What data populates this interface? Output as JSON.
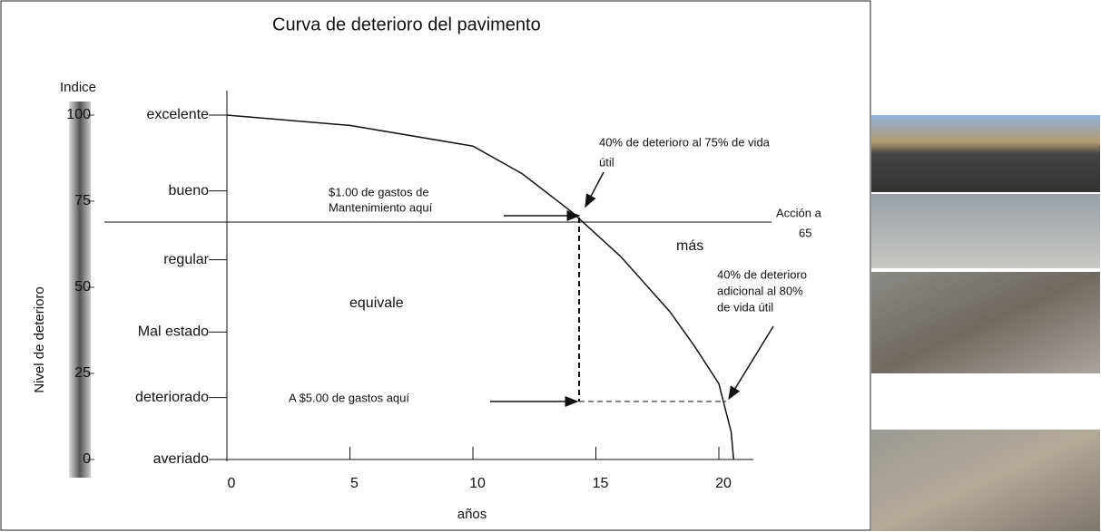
{
  "chart_data": {
    "type": "line",
    "title": "Curva de deterioro del pavimento",
    "x_label": "años",
    "y_label": "Nivel de deterioro",
    "index_label": "Indice",
    "x": [
      0,
      5,
      10,
      12,
      14,
      16,
      18,
      19,
      20,
      20.5,
      20.6
    ],
    "values": [
      100,
      97,
      91,
      83,
      72,
      59,
      43,
      33,
      22,
      8,
      0
    ],
    "color": "#111111",
    "xlim": [
      0,
      21.4
    ],
    "ylim": [
      0,
      100
    ],
    "xticks": [
      0,
      5,
      10,
      15,
      20
    ],
    "yticks": [
      0,
      25,
      50,
      75,
      100
    ],
    "levels": [
      {
        "label": "excelente",
        "value": 100
      },
      {
        "label": "bueno",
        "value": 78
      },
      {
        "label": "regular",
        "value": 58
      },
      {
        "label": "Mal estado",
        "value": 37
      },
      {
        "label": "deteriorado",
        "value": 18
      },
      {
        "label": "averiado",
        "value": 0
      }
    ],
    "annotations": [
      "40% de deterioro al 75% de vida",
      "útil",
      "$1.00 de gastos de",
      "Mantenimiento aquí",
      "Acción a",
      "65",
      "más",
      "equivale",
      "40% de deterioro",
      "adicional al 80%",
      "de vida útil",
      "A $5.00 de gastos aquí"
    ]
  }
}
